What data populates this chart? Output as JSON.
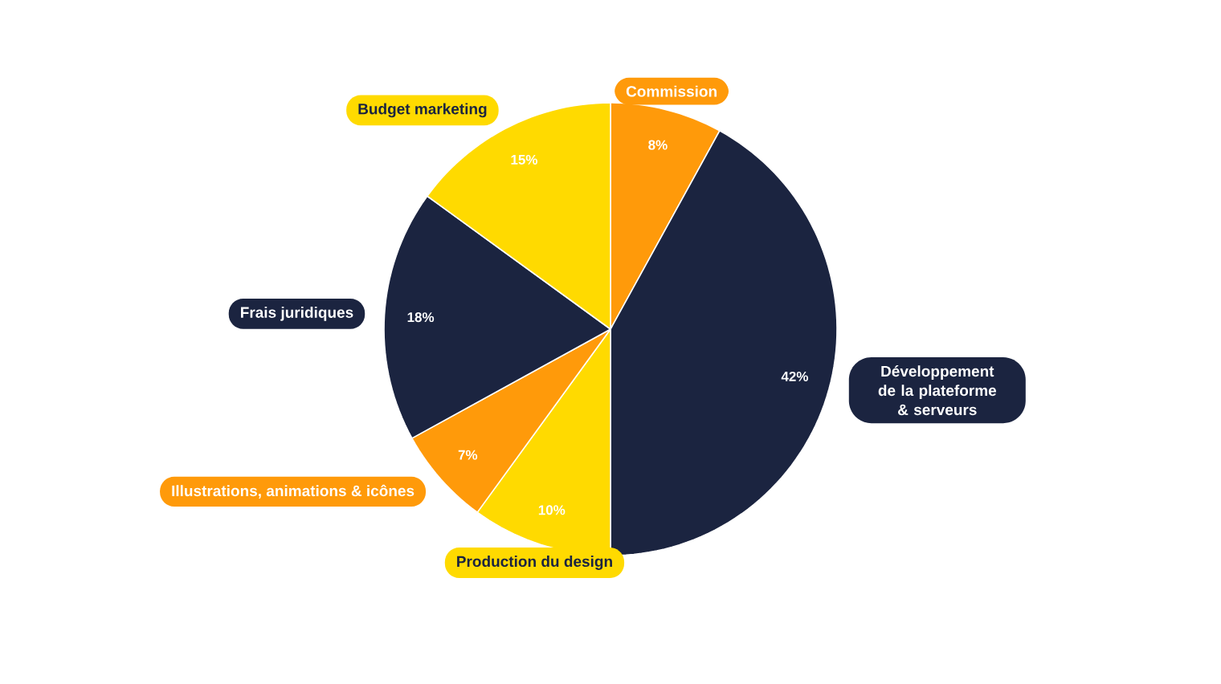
{
  "chart_data": {
    "type": "pie",
    "categories": [
      "Commission",
      "Développement de la plateforme & serveurs",
      "Production du design",
      "Illustrations, animations & icônes",
      "Frais juridiques",
      "Budget marketing"
    ],
    "values": [
      8,
      42,
      10,
      7,
      18,
      15
    ],
    "value_labels": [
      "8%",
      "42%",
      "10%",
      "7%",
      "18%",
      "15%"
    ],
    "colors": [
      "#ff9a0a",
      "#1b2440",
      "#ffda00",
      "#ff9a0a",
      "#1b2440",
      "#ffda00"
    ],
    "legend": false
  }
}
